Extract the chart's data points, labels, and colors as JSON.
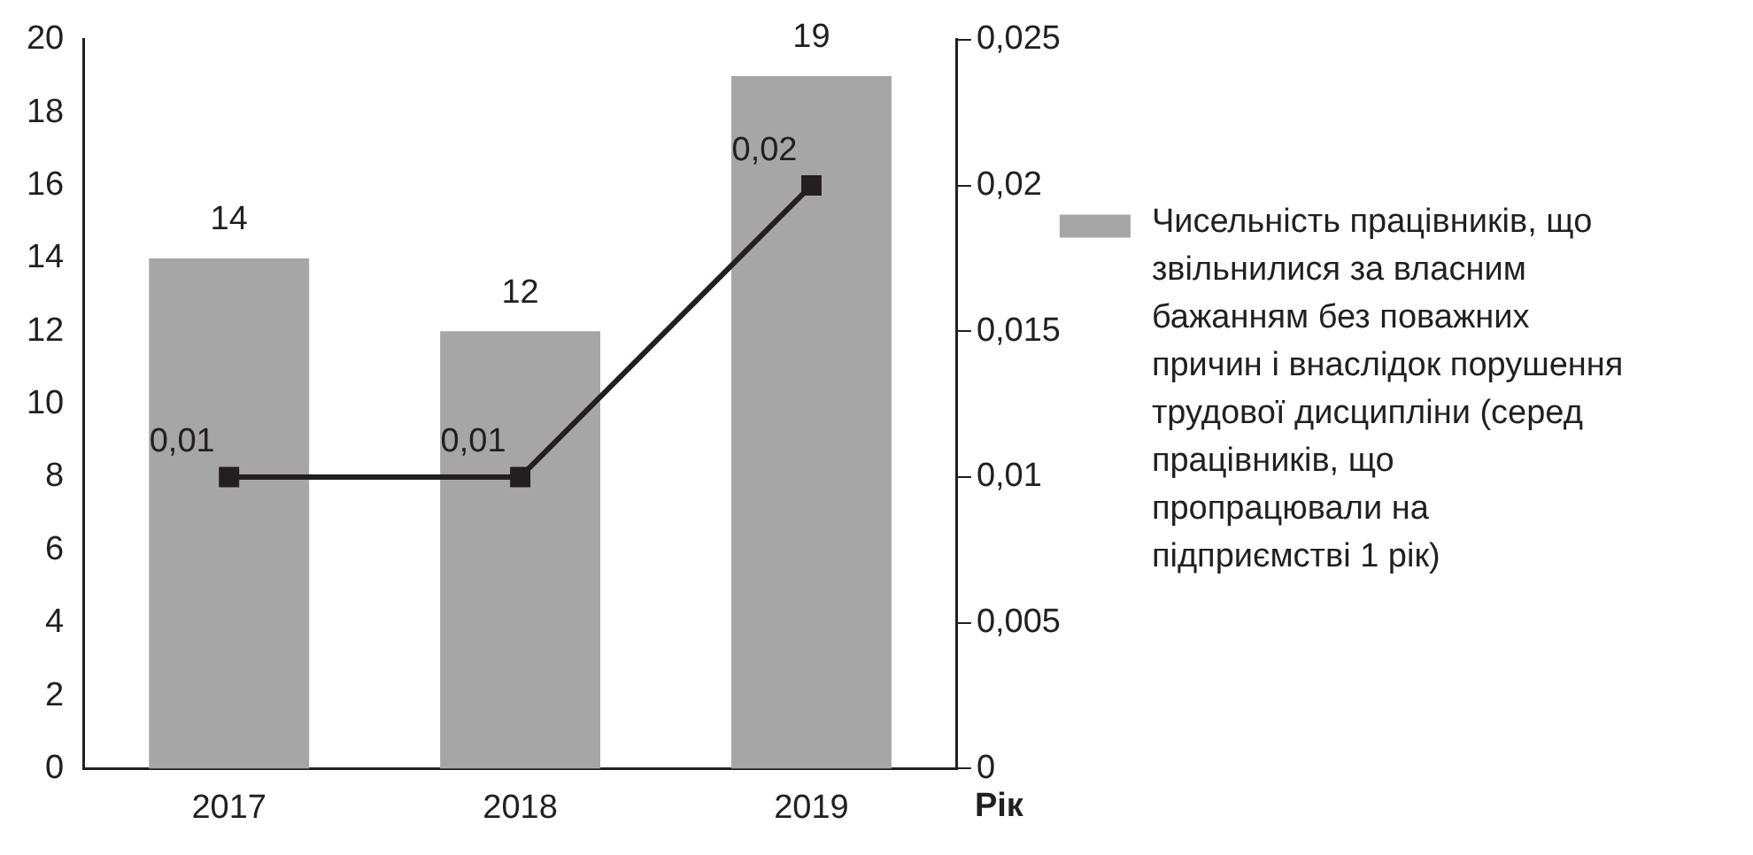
{
  "chart_data": {
    "type": "bar",
    "categories": [
      "2017",
      "2018",
      "2019"
    ],
    "xlabel": "Рік",
    "series": [
      {
        "name": "Чисельність працівників, що звільнилися за власним бажанням без поважних причин і внаслідок порушення трудової дисципліни (серед працівників, що пропрацювали на підприємстві 1 рік)",
        "color": "#a6a6a6",
        "values": [
          14,
          12,
          19
        ],
        "value_labels": [
          "14",
          "12",
          "19"
        ]
      },
      {
        "type": "line",
        "axis": "y2",
        "color": "#231f20",
        "values": [
          0.01,
          0.01,
          0.02
        ],
        "value_labels": [
          "0,01",
          "0,01",
          "0,02"
        ],
        "marker": "square",
        "line_style": "solid"
      }
    ],
    "ylim": [
      0,
      20
    ],
    "yticks": [
      0,
      2,
      4,
      6,
      8,
      10,
      12,
      14,
      16,
      18,
      20
    ],
    "y2lim": [
      0,
      0.025
    ],
    "y2ticks": [
      0,
      {
        "value": 0.005,
        "label": "0,005"
      },
      {
        "value": 0.01,
        "label": "0,01"
      },
      {
        "value": 0.015,
        "label": "0,015"
      },
      {
        "value": 0.02,
        "label": "0,02"
      },
      {
        "value": 0.025,
        "label": "0,025"
      }
    ],
    "grid": false,
    "legend": "right"
  }
}
